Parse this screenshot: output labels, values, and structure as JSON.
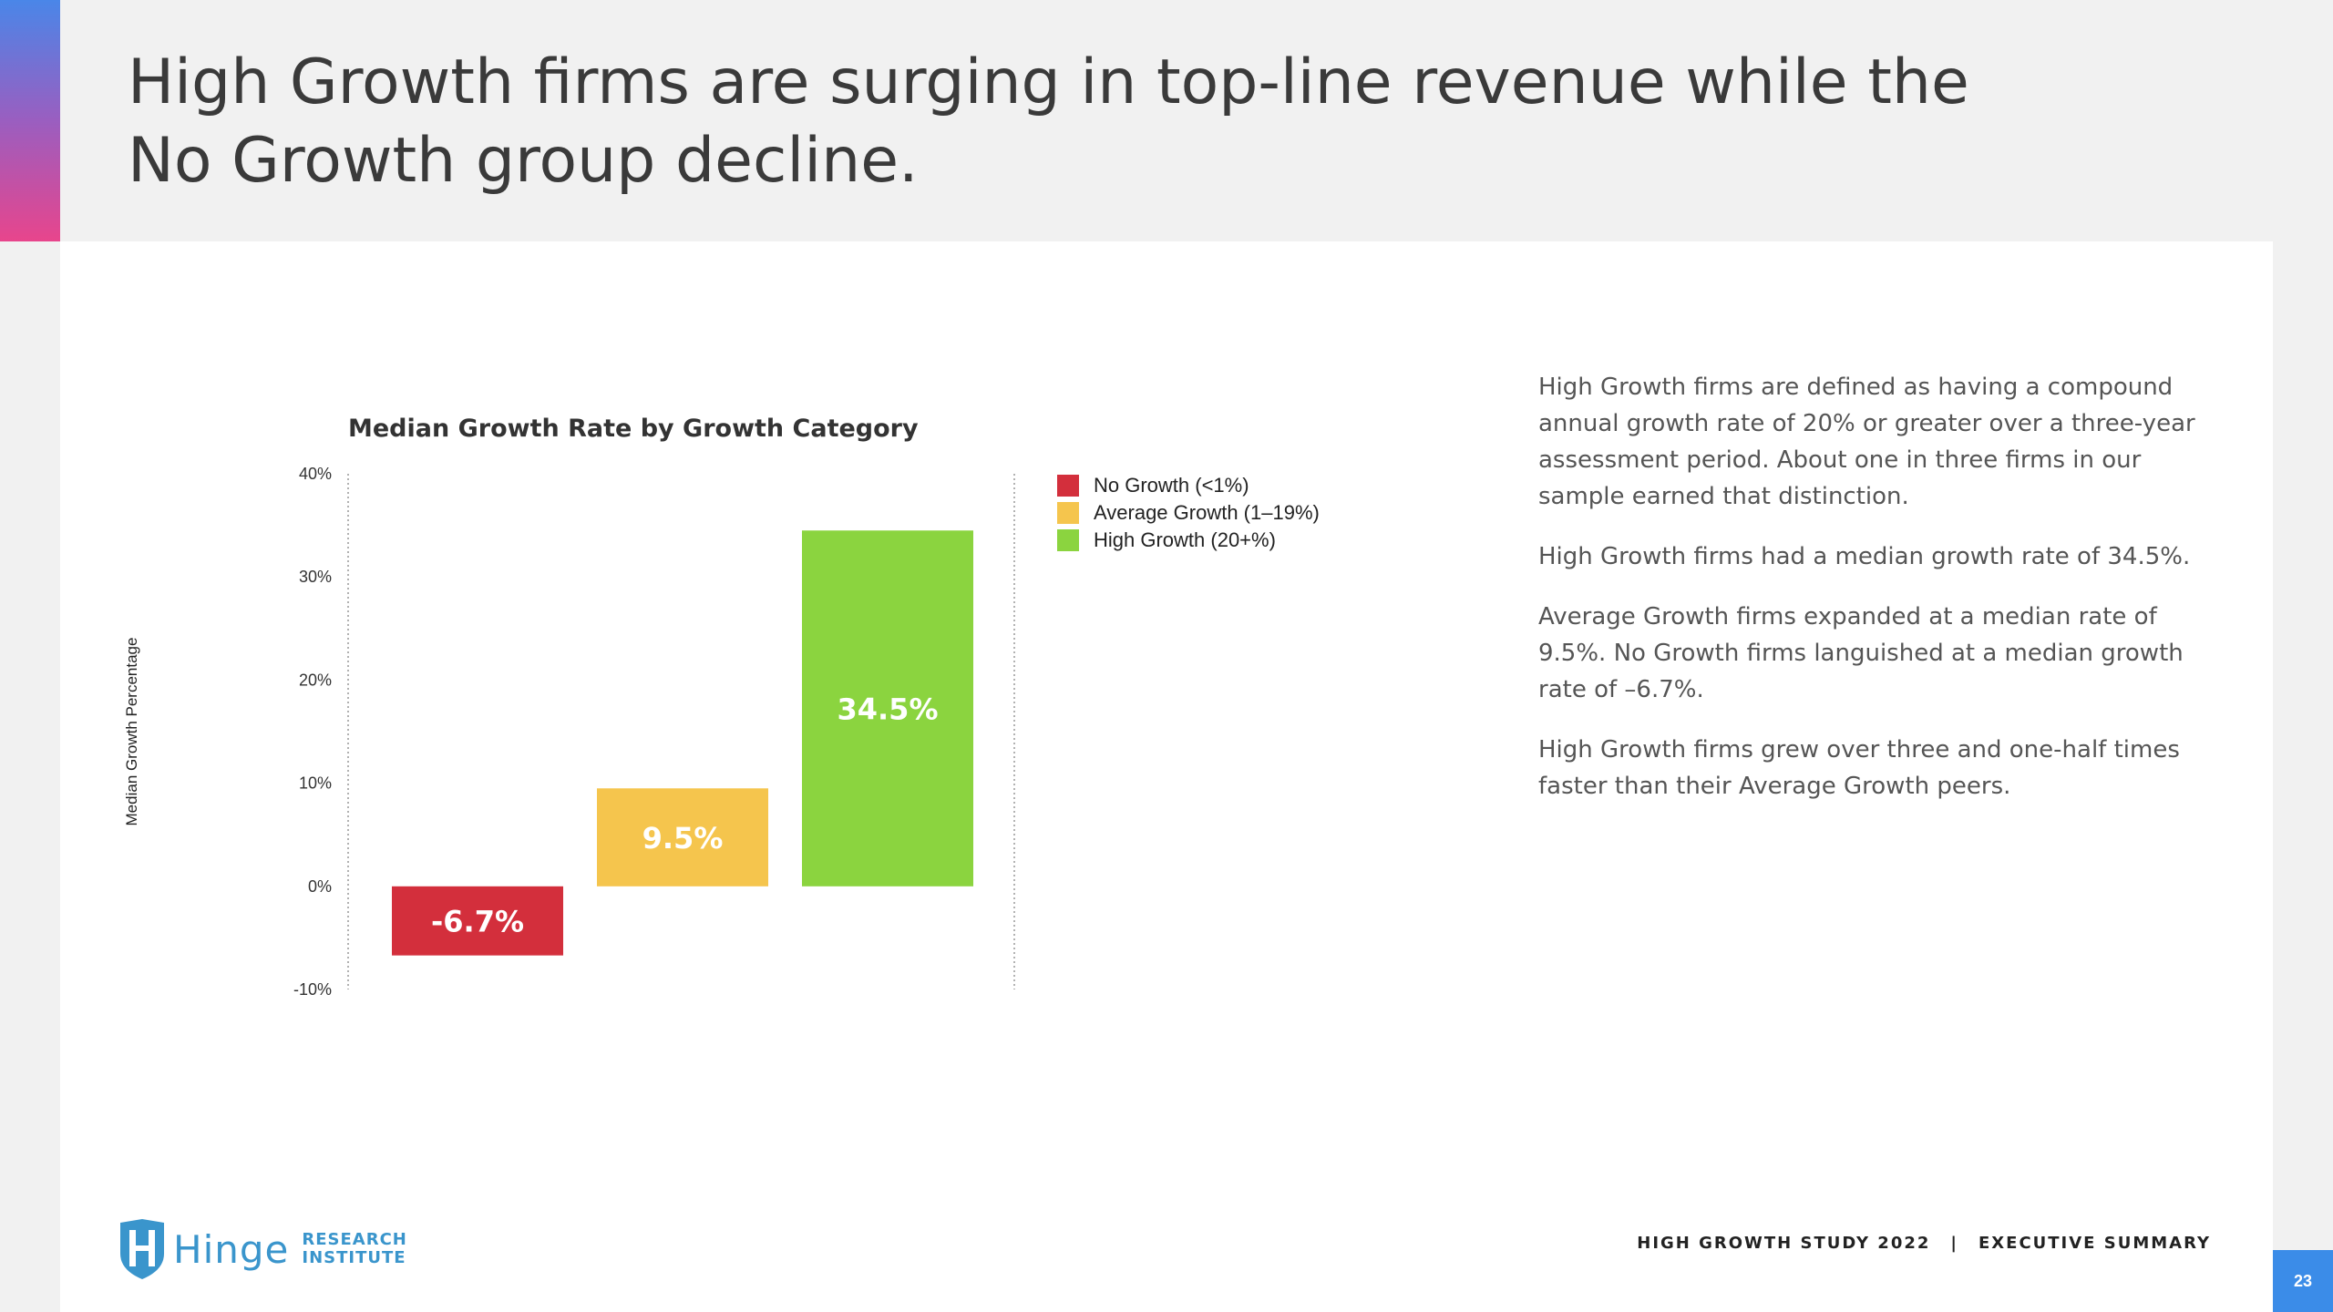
{
  "slide": {
    "title": "High Growth firms are surging in top-line revenue while the No Growth group decline.",
    "page_number": "23"
  },
  "colors": {
    "no_growth": "#d32f3c",
    "average_growth": "#f5c54d",
    "high_growth": "#8bd43f",
    "accent": "#3b8ce8",
    "logo": "#3a95cc"
  },
  "chart_data": {
    "type": "bar",
    "title": "Median Growth Rate by Growth Category",
    "ylabel": "Median Growth Percentage",
    "xlabel": "",
    "ylim": [
      -10,
      40
    ],
    "yticks": [
      {
        "value": 40,
        "label": "40%"
      },
      {
        "value": 30,
        "label": "30%"
      },
      {
        "value": 20,
        "label": "20%"
      },
      {
        "value": 10,
        "label": "10%"
      },
      {
        "value": 0,
        "label": "0%"
      },
      {
        "value": -10,
        "label": "-10%"
      }
    ],
    "legend_position": "top-right",
    "grid": false,
    "series": [
      {
        "name": "No Growth (<1%)",
        "value": -6.7,
        "label": "-6.7%",
        "color": "#d32f3c"
      },
      {
        "name": "Average Growth (1–19%)",
        "value": 9.5,
        "label": "9.5%",
        "color": "#f5c54d"
      },
      {
        "name": "High Growth (20+%)",
        "value": 34.5,
        "label": "34.5%",
        "color": "#8bd43f"
      }
    ]
  },
  "body": {
    "paragraphs": [
      "High Growth firms are defined as having a compound annual growth rate of 20% or greater over a three-year assessment period. About one in three firms in our sample earned that distinction.",
      "High Growth firms had a median growth rate of 34.5%.",
      "Average Growth firms expanded at a median rate of 9.5%. No Growth firms languished at a median growth rate of –6.7%.",
      "High Growth firms grew over three and one-half times faster than their Average Growth peers."
    ]
  },
  "footer": {
    "logo_word": "Hinge",
    "logo_sub_1": "RESEARCH",
    "logo_sub_2": "INSTITUTE",
    "study": "HIGH GROWTH STUDY 2022",
    "separator": "|",
    "section": "EXECUTIVE SUMMARY"
  }
}
